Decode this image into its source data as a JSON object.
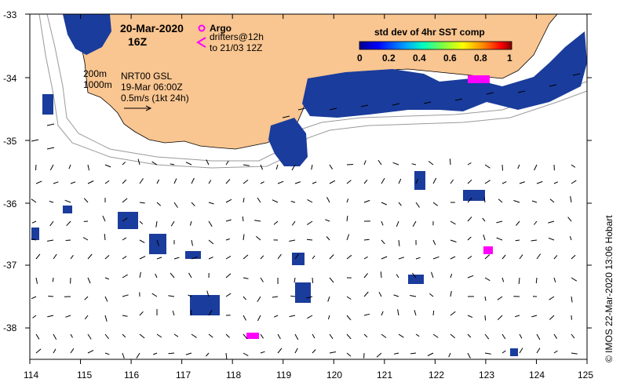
{
  "map": {
    "date": "20-Mar-2020",
    "hour": "16Z",
    "argo_label": "Argo",
    "drifters_line1": "drifters@12h",
    "drifters_line2": "to 21/03 12Z",
    "colorbar": {
      "title": "std dev of 4hr SST comp",
      "ticks": [
        "0",
        "0.2",
        "0.4",
        "0.6",
        "0.8",
        "1"
      ]
    },
    "depth_200": "200m",
    "depth_1000": "1000m",
    "source": "NRT00 GSL",
    "source_time": "19-Mar 06:00Z",
    "scale_text": "0.5m/s (1kt 24h)",
    "credit": "© IMOS 22-Mar-2020 13:06 Hobart",
    "lat_labels": [
      "-33",
      "-34",
      "-35",
      "-36",
      "-37",
      "-38"
    ],
    "lon_labels": [
      "114",
      "115",
      "116",
      "117",
      "118",
      "119",
      "120",
      "121",
      "122",
      "123",
      "124",
      "125"
    ],
    "colors": {
      "land": "#f9c590",
      "sst_patch": "#1a3c9c",
      "drifter": "#ff00ff",
      "contour": "#9a9a9a"
    }
  }
}
